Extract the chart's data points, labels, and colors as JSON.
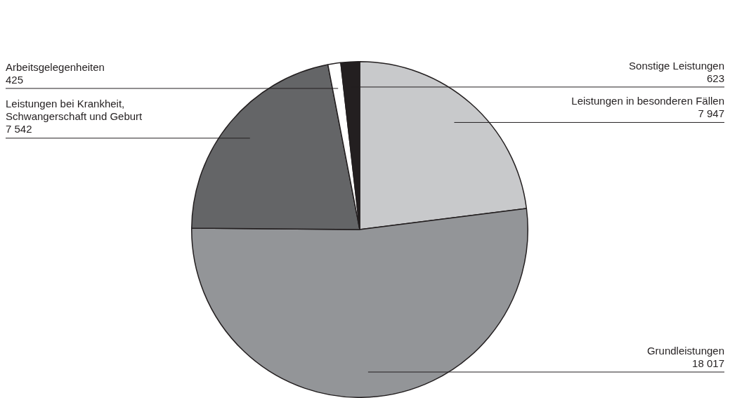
{
  "chart_data": {
    "type": "pie",
    "categories": [
      "Leistungen in besonderen Fällen",
      "Grundleistungen",
      "Leistungen bei Krankheit, Schwangerschaft und Geburt",
      "Arbeitsgelegenheiten",
      "Sonstige Leistungen"
    ],
    "values": [
      7947,
      18017,
      7542,
      425,
      623
    ],
    "value_labels": [
      "7 947",
      "18 017",
      "7 542",
      "425",
      "623"
    ],
    "colors": [
      "#c8c9cb",
      "#939598",
      "#646567",
      "#ffffff",
      "#231f20"
    ],
    "legend": false
  }
}
